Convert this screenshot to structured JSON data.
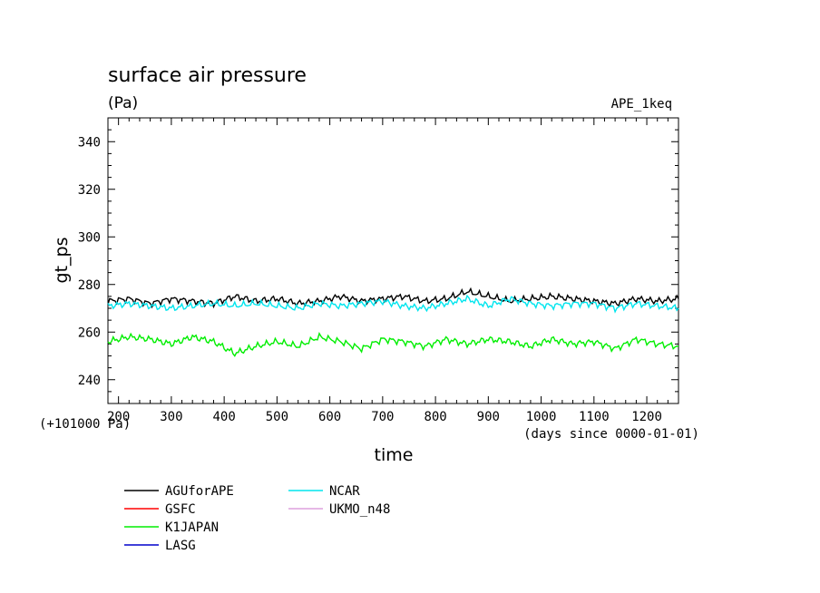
{
  "chart_data": {
    "type": "line",
    "title": "surface air pressure",
    "units": "(Pa)",
    "experiment": "APE_1keq",
    "xlabel": "time",
    "ylabel": "gt_ps",
    "x_unit_note": "(days since 0000-01-01)",
    "y_offset_note": "(+101000 Pa)",
    "xlim": [
      180,
      1260
    ],
    "ylim": [
      230,
      350
    ],
    "xticks": [
      200,
      300,
      400,
      500,
      600,
      700,
      800,
      900,
      1000,
      1100,
      1200
    ],
    "yticks": [
      240,
      260,
      280,
      300,
      320,
      340
    ],
    "grid": false,
    "legend_position": "bottom-left",
    "series": [
      {
        "name": "AGUforAPE",
        "color": "#000000",
        "x": [
          180,
          220,
          260,
          300,
          340,
          380,
          420,
          460,
          500,
          540,
          580,
          620,
          660,
          700,
          740,
          780,
          820,
          860,
          900,
          940,
          980,
          1020,
          1060,
          1100,
          1140,
          1180,
          1220,
          1260
        ],
        "values": [
          273,
          274,
          272,
          274,
          273,
          272,
          275,
          273,
          274,
          272,
          273,
          275,
          273,
          274,
          275,
          273,
          274,
          277,
          275,
          273,
          274,
          275,
          274,
          273,
          272,
          274,
          273,
          274
        ]
      },
      {
        "name": "GSFC",
        "color": "#ff0000",
        "x": [],
        "values": []
      },
      {
        "name": "K1JAPAN",
        "color": "#00ee00",
        "x": [
          180,
          220,
          260,
          300,
          340,
          380,
          420,
          460,
          500,
          540,
          580,
          620,
          660,
          700,
          740,
          780,
          820,
          860,
          900,
          940,
          980,
          1020,
          1060,
          1100,
          1140,
          1180,
          1220,
          1260
        ],
        "values": [
          256,
          258,
          257,
          255,
          258,
          256,
          251,
          254,
          256,
          254,
          258,
          256,
          253,
          257,
          256,
          254,
          257,
          255,
          257,
          256,
          254,
          257,
          255,
          256,
          253,
          257,
          255,
          254
        ]
      },
      {
        "name": "LASG",
        "color": "#0000cc",
        "x": [],
        "values": []
      },
      {
        "name": "NCAR",
        "color": "#00e5ee",
        "x": [
          180,
          220,
          260,
          300,
          340,
          380,
          420,
          460,
          500,
          540,
          580,
          620,
          660,
          700,
          740,
          780,
          820,
          860,
          900,
          940,
          980,
          1020,
          1060,
          1100,
          1140,
          1180,
          1220,
          1260
        ],
        "values": [
          271,
          272,
          271,
          270,
          271,
          272,
          271,
          272,
          271,
          270,
          272,
          271,
          272,
          273,
          271,
          270,
          272,
          274,
          271,
          274,
          272,
          271,
          272,
          272,
          270,
          272,
          271,
          270
        ]
      },
      {
        "name": "UKMO_n48",
        "color": "#dda0dd",
        "x": [],
        "values": []
      }
    ]
  }
}
